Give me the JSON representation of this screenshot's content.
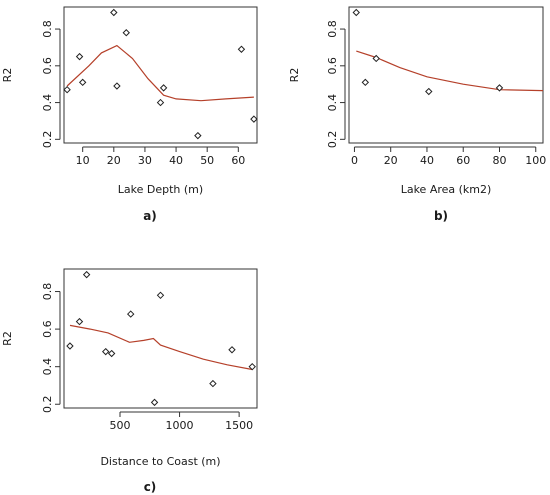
{
  "colors": {
    "fit_line": "#b5402a",
    "marker": "#222222",
    "axis": "#333333"
  },
  "chart_data": [
    {
      "type": "scatter",
      "panel_label": "a)",
      "xlabel": "Lake Depth (m)",
      "ylabel": "R2",
      "xlim": [
        4,
        66
      ],
      "ylim": [
        0.18,
        0.92
      ],
      "xticks": [
        10,
        20,
        30,
        40,
        50,
        60
      ],
      "yticks": [
        0.2,
        0.4,
        0.6,
        0.8
      ],
      "marker": "open-diamond",
      "grid": false,
      "points": [
        {
          "x": 5,
          "y": 0.47
        },
        {
          "x": 9,
          "y": 0.65
        },
        {
          "x": 10,
          "y": 0.51
        },
        {
          "x": 20,
          "y": 0.89
        },
        {
          "x": 21,
          "y": 0.49
        },
        {
          "x": 24,
          "y": 0.78
        },
        {
          "x": 35,
          "y": 0.4
        },
        {
          "x": 36,
          "y": 0.48
        },
        {
          "x": 47,
          "y": 0.22
        },
        {
          "x": 61,
          "y": 0.69
        },
        {
          "x": 65,
          "y": 0.31
        }
      ],
      "fit": [
        {
          "x": 5,
          "y": 0.49
        },
        {
          "x": 12,
          "y": 0.6
        },
        {
          "x": 16,
          "y": 0.67
        },
        {
          "x": 21,
          "y": 0.71
        },
        {
          "x": 26,
          "y": 0.64
        },
        {
          "x": 31,
          "y": 0.53
        },
        {
          "x": 36,
          "y": 0.44
        },
        {
          "x": 40,
          "y": 0.42
        },
        {
          "x": 48,
          "y": 0.41
        },
        {
          "x": 56,
          "y": 0.42
        },
        {
          "x": 65,
          "y": 0.43
        }
      ]
    },
    {
      "type": "scatter",
      "panel_label": "b)",
      "xlabel": "Lake Area (km2)",
      "ylabel": "R2",
      "xlim": [
        -3,
        104
      ],
      "ylim": [
        0.18,
        0.92
      ],
      "xticks": [
        0,
        20,
        40,
        60,
        80,
        100
      ],
      "yticks": [
        0.2,
        0.4,
        0.6,
        0.8
      ],
      "marker": "open-diamond",
      "grid": false,
      "points": [
        {
          "x": 1,
          "y": 0.89
        },
        {
          "x": 6,
          "y": 0.51
        },
        {
          "x": 12,
          "y": 0.64
        },
        {
          "x": 41,
          "y": 0.46
        },
        {
          "x": 80,
          "y": 0.48
        }
      ],
      "fit": [
        {
          "x": 1,
          "y": 0.68
        },
        {
          "x": 12,
          "y": 0.645
        },
        {
          "x": 25,
          "y": 0.59
        },
        {
          "x": 40,
          "y": 0.54
        },
        {
          "x": 60,
          "y": 0.5
        },
        {
          "x": 80,
          "y": 0.47
        },
        {
          "x": 104,
          "y": 0.465
        }
      ]
    },
    {
      "type": "scatter",
      "panel_label": "c)",
      "xlabel": "Distance to Coast (m)",
      "ylabel": "R2",
      "xlim": [
        30,
        1650
      ],
      "ylim": [
        0.18,
        0.92
      ],
      "xticks": [
        500,
        1000,
        1500
      ],
      "yticks": [
        0.2,
        0.4,
        0.6,
        0.8
      ],
      "marker": "open-diamond",
      "grid": false,
      "points": [
        {
          "x": 80,
          "y": 0.51
        },
        {
          "x": 160,
          "y": 0.64
        },
        {
          "x": 220,
          "y": 0.89
        },
        {
          "x": 380,
          "y": 0.48
        },
        {
          "x": 430,
          "y": 0.47
        },
        {
          "x": 590,
          "y": 0.68
        },
        {
          "x": 790,
          "y": 0.21
        },
        {
          "x": 840,
          "y": 0.78
        },
        {
          "x": 1280,
          "y": 0.31
        },
        {
          "x": 1440,
          "y": 0.49
        },
        {
          "x": 1610,
          "y": 0.4
        }
      ],
      "fit": [
        {
          "x": 80,
          "y": 0.62
        },
        {
          "x": 250,
          "y": 0.6
        },
        {
          "x": 400,
          "y": 0.58
        },
        {
          "x": 580,
          "y": 0.53
        },
        {
          "x": 700,
          "y": 0.54
        },
        {
          "x": 780,
          "y": 0.55
        },
        {
          "x": 840,
          "y": 0.515
        },
        {
          "x": 1000,
          "y": 0.48
        },
        {
          "x": 1200,
          "y": 0.44
        },
        {
          "x": 1400,
          "y": 0.41
        },
        {
          "x": 1610,
          "y": 0.385
        }
      ]
    }
  ]
}
